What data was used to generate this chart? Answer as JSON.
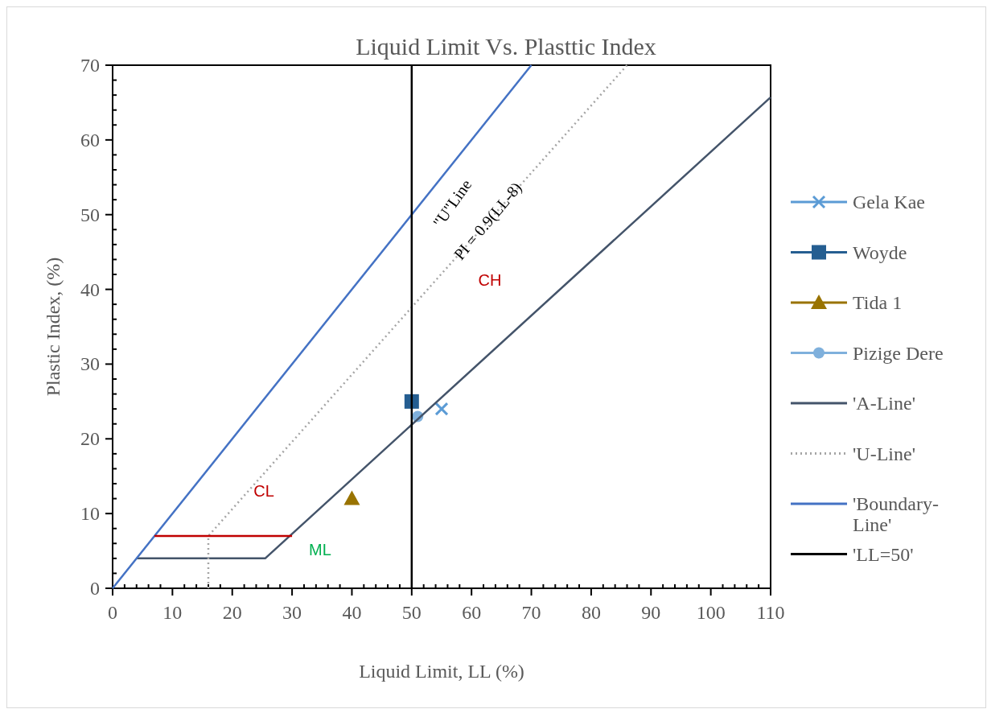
{
  "chart_data": {
    "type": "scatter",
    "title": "Liquid Limit Vs. Plasttic Index",
    "xlabel": "Liquid Limit, LL (%)",
    "ylabel": "Plastic Index, (%)",
    "xlim": [
      0,
      110
    ],
    "ylim": [
      0,
      70
    ],
    "xticks": [
      0,
      10,
      20,
      30,
      40,
      50,
      60,
      70,
      80,
      90,
      100,
      110
    ],
    "yticks": [
      0,
      10,
      20,
      30,
      40,
      50,
      60,
      70
    ],
    "grid": false,
    "legend": "right",
    "series": [
      {
        "name": "Gela Kae",
        "marker": "cross",
        "color": "#5b9bd5",
        "x": [
          55
        ],
        "values": [
          24
        ]
      },
      {
        "name": "Woyde",
        "marker": "square",
        "color": "#255e91",
        "x": [
          50
        ],
        "values": [
          25
        ]
      },
      {
        "name": "Tida 1",
        "marker": "triangle",
        "color": "#997300",
        "x": [
          40
        ],
        "values": [
          12
        ]
      },
      {
        "name": "Pizige Dere",
        "marker": "circle",
        "color": "#7fb0dc",
        "x": [
          51
        ],
        "values": [
          23
        ]
      },
      {
        "name": "'A-Line'",
        "type": "line",
        "line_style": "solid",
        "color": "#44546a",
        "x": [
          4,
          25.5,
          110
        ],
        "values": [
          4,
          4,
          65.7
        ]
      },
      {
        "name": "'U-Line'",
        "type": "line",
        "line_style": "dotted",
        "color": "#a5a5a5",
        "x": [
          16,
          16,
          86
        ],
        "values": [
          0,
          7,
          70
        ]
      },
      {
        "name": "'Boundary-Line'",
        "type": "line",
        "line_style": "solid",
        "color": "#4472c4",
        "x": [
          0,
          70
        ],
        "values": [
          0,
          70
        ]
      },
      {
        "name": "'LL=50'",
        "type": "line",
        "line_style": "solid",
        "color": "#000000",
        "x": [
          50,
          50
        ],
        "values": [
          0,
          70
        ]
      },
      {
        "type": "line",
        "line_style": "solid",
        "color": "#c00000",
        "x": [
          7,
          30
        ],
        "values": [
          7,
          7
        ]
      }
    ],
    "annotations": [
      "CL",
      "ML",
      "CH",
      "\"U\"Line",
      "PI = 0.9(LL-8)"
    ]
  }
}
